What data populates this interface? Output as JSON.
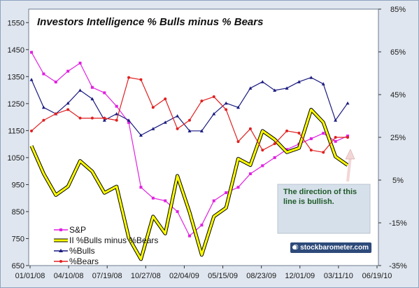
{
  "chart_data": {
    "type": "line",
    "title": "Investors Intelligence % Bulls minus % Bears",
    "x": [
      "01/01/08",
      "02/01/08",
      "03/01/08",
      "04/01/08",
      "05/01/08",
      "06/01/08",
      "07/01/08",
      "08/01/08",
      "09/01/08",
      "10/01/08",
      "11/01/08",
      "12/01/08",
      "01/01/09",
      "02/01/09",
      "03/01/09",
      "04/01/09",
      "05/01/09",
      "06/01/09",
      "07/01/09",
      "08/01/09",
      "09/01/09",
      "10/01/09",
      "11/01/09",
      "12/01/09",
      "01/01/10",
      "02/01/10",
      "03/01/10"
    ],
    "x_ticks": [
      "01/01/08",
      "04/10/08",
      "07/19/08",
      "10/27/08",
      "02/04/09",
      "05/15/09",
      "08/23/09",
      "12/01/09",
      "03/11/10",
      "06/19/10"
    ],
    "left_axis": {
      "ticks": [
        "650",
        "750",
        "850",
        "950",
        "1050",
        "1150",
        "1250",
        "1350",
        "1450",
        "1550"
      ],
      "ylim": [
        650,
        1600
      ]
    },
    "right_axis": {
      "ticks": [
        "-35%",
        "-15%",
        "5%",
        "25%",
        "45%",
        "65%",
        "85%"
      ],
      "ylim": [
        -35,
        85
      ]
    },
    "series": [
      {
        "name": "S&P",
        "axis": "left",
        "color": "#e020e0",
        "marker": "square",
        "values": [
          1440,
          1360,
          1330,
          1370,
          1400,
          1310,
          1290,
          1240,
          1180,
          940,
          900,
          890,
          850,
          760,
          800,
          890,
          920,
          940,
          990,
          1020,
          1050,
          1080,
          1100,
          1120,
          1140,
          1110,
          1130
        ]
      },
      {
        "name": "II %Bulls minus %Bears",
        "axis": "right",
        "color": "#ffff00",
        "outline": "#000000",
        "marker": "none",
        "values": [
          21,
          8,
          -2,
          2,
          14,
          9,
          -1,
          2,
          -22,
          -32,
          -12,
          -20,
          7,
          -10,
          -30,
          -12,
          -8,
          15,
          12,
          28,
          24,
          18,
          20,
          38,
          32,
          16,
          12
        ]
      },
      {
        "name": "%Bulls",
        "axis": "right",
        "color": "#1a1a80",
        "marker": "triangle",
        "values": [
          52,
          39,
          36,
          41,
          47,
          43,
          33,
          36,
          33,
          26,
          29,
          32,
          35,
          28,
          28,
          36,
          41,
          39,
          48,
          51,
          47,
          48,
          51,
          53,
          50,
          33,
          41
        ]
      },
      {
        "name": "%Bears",
        "axis": "right",
        "color": "#e02020",
        "marker": "circle",
        "values": [
          28,
          33,
          36,
          38,
          34,
          34,
          34,
          33,
          53,
          52,
          39,
          43,
          29,
          33,
          42,
          44,
          38,
          23,
          29,
          19,
          22,
          28,
          27,
          19,
          18,
          25,
          25
        ]
      }
    ],
    "legend_position": "bottom-left",
    "grid": false,
    "annotations": {
      "note_line1": "The direction of this",
      "note_line2": "line is bullish.",
      "credit": "© stockbarometer.com"
    }
  }
}
